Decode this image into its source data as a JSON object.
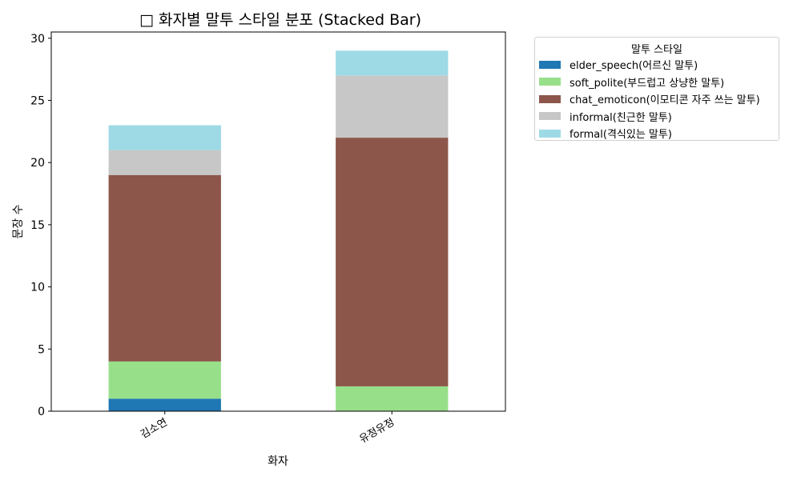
{
  "chart_data": {
    "type": "bar",
    "stacked": true,
    "title": "□ 화자별 말투 스타일 분포 (Stacked Bar)",
    "xlabel": "화자",
    "ylabel": "문장 수",
    "categories": [
      "김소연",
      "유정유정"
    ],
    "ylim": [
      0,
      30.5
    ],
    "yticks": [
      0,
      5,
      10,
      15,
      20,
      25,
      30
    ],
    "grid": false,
    "legend_title": "말투 스타일",
    "legend_position": "outside top-right",
    "series": [
      {
        "name": "elder_speech(어르신 말투)",
        "color": "#1f77b4",
        "values": [
          1,
          0
        ]
      },
      {
        "name": "soft_polite(부드럽고 상냥한 말투)",
        "color": "#98df8a",
        "values": [
          3,
          2
        ]
      },
      {
        "name": "chat_emoticon(이모티콘 자주 쓰는 말투)",
        "color": "#8c564b",
        "values": [
          15,
          20
        ]
      },
      {
        "name": "informal(친근한 말투)",
        "color": "#c7c7c7",
        "values": [
          2,
          5
        ]
      },
      {
        "name": "formal(격식있는 말투)",
        "color": "#9edae5",
        "values": [
          2,
          2
        ]
      }
    ]
  }
}
